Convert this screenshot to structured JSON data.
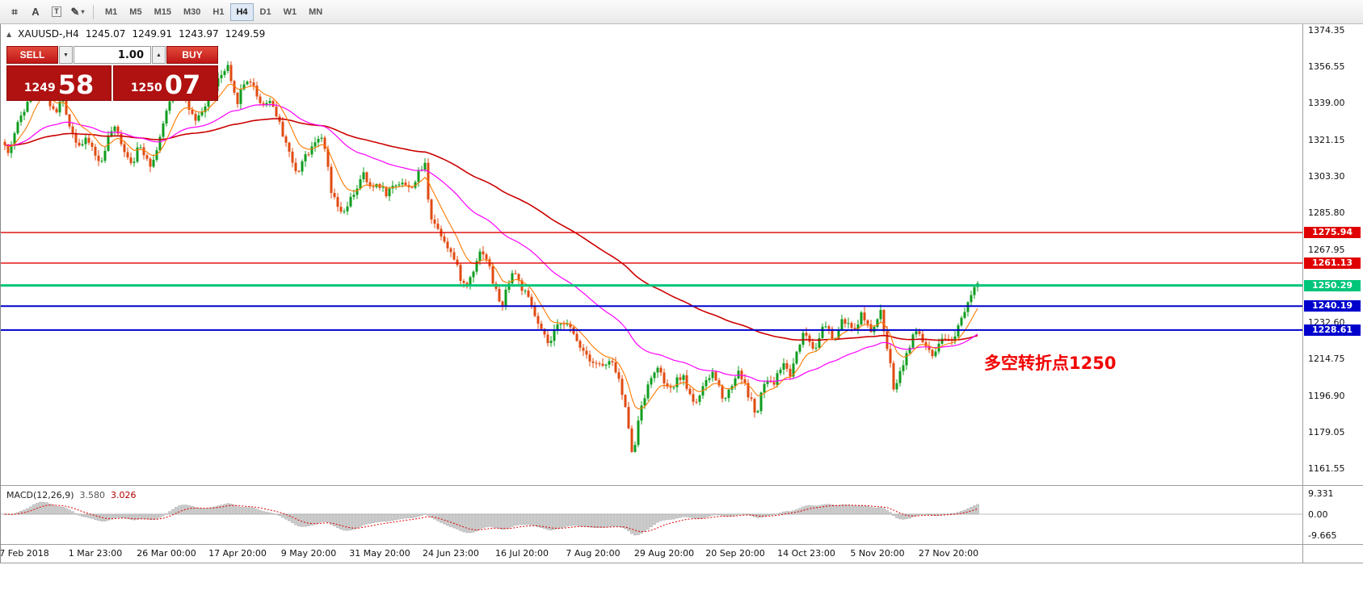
{
  "toolbar": {
    "tools": [
      {
        "name": "crosshair",
        "glyph": "⌗"
      },
      {
        "name": "text",
        "glyph": "A"
      },
      {
        "name": "label",
        "glyph": "T"
      },
      {
        "name": "shapes",
        "glyph": "✎"
      }
    ],
    "dropdown_caret": "▾",
    "timeframes": [
      "M1",
      "M5",
      "M15",
      "M30",
      "H1",
      "H4",
      "D1",
      "W1",
      "MN"
    ],
    "active_timeframe": "H4"
  },
  "symbol_bar": {
    "marker": "▲",
    "symbol": "XAUUSD-,H4",
    "open": "1245.07",
    "high": "1249.91",
    "low": "1243.97",
    "close": "1249.59"
  },
  "trade_panel": {
    "sell_label": "SELL",
    "buy_label": "BUY",
    "volume": "1.00",
    "down_glyph": "▼",
    "up_glyph": "▲",
    "bid_major": "1249",
    "bid_minor": "58",
    "ask_major": "1250",
    "ask_minor": "07"
  },
  "annotation": {
    "text": "多空转折点1250",
    "color": "#f20000"
  },
  "macd": {
    "label": "MACD(12,26,9)",
    "value_main": "3.580",
    "value_signal": "3.026",
    "axis": [
      "9.331",
      "0.00",
      "-9.665"
    ]
  },
  "chart_data": {
    "type": "candlestick",
    "title": "XAUUSD-,H4",
    "symbol": "XAUUSD",
    "timeframe": "H4",
    "ylim": [
      1161.55,
      1374.35
    ],
    "grid": false,
    "price_ticks": [
      "1374.35",
      "1356.55",
      "1339.00",
      "1321.15",
      "1303.30",
      "1285.80",
      "1267.95",
      "1232.60",
      "1214.75",
      "1196.90",
      "1179.05",
      "1161.55"
    ],
    "x_tick_labels": [
      "7 Feb 2018",
      "1 Mar 23:00",
      "26 Mar 00:00",
      "17 Apr 20:00",
      "9 May 20:00",
      "31 May 20:00",
      "24 Jun 23:00",
      "16 Jul 20:00",
      "7 Aug 20:00",
      "29 Aug 20:00",
      "20 Sep 20:00",
      "14 Oct 23:00",
      "5 Nov 20:00",
      "27 Nov 20:00"
    ],
    "hlines": [
      {
        "price": 1275.94,
        "label": "1275.94",
        "color": "#e00000",
        "width": 1.4
      },
      {
        "price": 1261.13,
        "label": "1261.13",
        "color": "#e00000",
        "width": 1.4
      },
      {
        "price": 1250.29,
        "label": "1250.29",
        "color": "#00c57a",
        "width": 3
      },
      {
        "price": 1240.19,
        "label": "1240.19",
        "color": "#0000cd",
        "width": 2
      },
      {
        "price": 1228.61,
        "label": "1228.61",
        "color": "#0000cd",
        "width": 2
      }
    ],
    "colors": {
      "up": "#0f9d1f",
      "down": "#e04a10",
      "ma_fast": "#ff7a00",
      "ma_mid": "#ff00ff",
      "ma_slow": "#cc0000"
    },
    "ma_periods": {
      "fast": 10,
      "mid": 45,
      "slow": 110
    },
    "macd_params": [
      12,
      26,
      9
    ],
    "anchors": [
      [
        6,
        1320
      ],
      [
        12,
        1314
      ],
      [
        18,
        1322
      ],
      [
        26,
        1331
      ],
      [
        34,
        1338
      ],
      [
        42,
        1350
      ],
      [
        50,
        1353
      ],
      [
        56,
        1347
      ],
      [
        62,
        1340
      ],
      [
        70,
        1333
      ],
      [
        78,
        1341
      ],
      [
        86,
        1331
      ],
      [
        94,
        1322
      ],
      [
        102,
        1318
      ],
      [
        110,
        1321
      ],
      [
        118,
        1316
      ],
      [
        126,
        1308
      ],
      [
        134,
        1320
      ],
      [
        142,
        1327
      ],
      [
        150,
        1322
      ],
      [
        158,
        1314
      ],
      [
        166,
        1310
      ],
      [
        174,
        1318
      ],
      [
        182,
        1314
      ],
      [
        190,
        1308
      ],
      [
        198,
        1320
      ],
      [
        206,
        1331
      ],
      [
        214,
        1342
      ],
      [
        222,
        1350
      ],
      [
        228,
        1344
      ],
      [
        236,
        1336
      ],
      [
        244,
        1329
      ],
      [
        252,
        1334
      ],
      [
        260,
        1341
      ],
      [
        268,
        1348
      ],
      [
        276,
        1352
      ],
      [
        284,
        1356
      ],
      [
        290,
        1344
      ],
      [
        296,
        1340
      ],
      [
        302,
        1347
      ],
      [
        310,
        1351
      ],
      [
        318,
        1345
      ],
      [
        326,
        1337
      ],
      [
        334,
        1341
      ],
      [
        342,
        1336
      ],
      [
        350,
        1326
      ],
      [
        358,
        1318
      ],
      [
        364,
        1309
      ],
      [
        370,
        1304
      ],
      [
        376,
        1312
      ],
      [
        382,
        1314
      ],
      [
        390,
        1320
      ],
      [
        398,
        1323
      ],
      [
        406,
        1313
      ],
      [
        412,
        1295
      ],
      [
        420,
        1288
      ],
      [
        428,
        1285
      ],
      [
        436,
        1292
      ],
      [
        444,
        1298
      ],
      [
        452,
        1304
      ],
      [
        460,
        1297
      ],
      [
        470,
        1300
      ],
      [
        480,
        1295
      ],
      [
        490,
        1299
      ],
      [
        500,
        1301
      ],
      [
        508,
        1297
      ],
      [
        516,
        1301
      ],
      [
        522,
        1306
      ],
      [
        528,
        1309
      ],
      [
        534,
        1285
      ],
      [
        542,
        1279
      ],
      [
        550,
        1274
      ],
      [
        558,
        1268
      ],
      [
        566,
        1261
      ],
      [
        572,
        1254
      ],
      [
        578,
        1249
      ],
      [
        586,
        1256
      ],
      [
        592,
        1263
      ],
      [
        598,
        1268
      ],
      [
        606,
        1262
      ],
      [
        612,
        1252
      ],
      [
        618,
        1245
      ],
      [
        624,
        1240
      ],
      [
        630,
        1251
      ],
      [
        638,
        1258
      ],
      [
        646,
        1250
      ],
      [
        654,
        1245
      ],
      [
        660,
        1240
      ],
      [
        668,
        1231
      ],
      [
        676,
        1225
      ],
      [
        682,
        1221
      ],
      [
        690,
        1229
      ],
      [
        698,
        1234
      ],
      [
        706,
        1230
      ],
      [
        714,
        1225
      ],
      [
        722,
        1220
      ],
      [
        728,
        1217
      ],
      [
        734,
        1214
      ],
      [
        742,
        1212
      ],
      [
        750,
        1211
      ],
      [
        758,
        1213
      ],
      [
        766,
        1208
      ],
      [
        772,
        1197
      ],
      [
        778,
        1187
      ],
      [
        783,
        1175
      ],
      [
        786,
        1163
      ],
      [
        790,
        1181
      ],
      [
        796,
        1193
      ],
      [
        802,
        1199
      ],
      [
        808,
        1205
      ],
      [
        814,
        1211
      ],
      [
        822,
        1205
      ],
      [
        830,
        1198
      ],
      [
        838,
        1203
      ],
      [
        846,
        1207
      ],
      [
        854,
        1199
      ],
      [
        862,
        1193
      ],
      [
        868,
        1197
      ],
      [
        876,
        1203
      ],
      [
        884,
        1208
      ],
      [
        892,
        1201
      ],
      [
        898,
        1195
      ],
      [
        904,
        1199
      ],
      [
        910,
        1204
      ],
      [
        916,
        1209
      ],
      [
        922,
        1204
      ],
      [
        928,
        1197
      ],
      [
        934,
        1193
      ],
      [
        938,
        1185
      ],
      [
        944,
        1197
      ],
      [
        950,
        1205
      ],
      [
        958,
        1201
      ],
      [
        966,
        1209
      ],
      [
        974,
        1213
      ],
      [
        980,
        1206
      ],
      [
        986,
        1216
      ],
      [
        992,
        1223
      ],
      [
        998,
        1228
      ],
      [
        1004,
        1223
      ],
      [
        1010,
        1219
      ],
      [
        1016,
        1226
      ],
      [
        1022,
        1231
      ],
      [
        1028,
        1228
      ],
      [
        1034,
        1223
      ],
      [
        1040,
        1229
      ],
      [
        1046,
        1234
      ],
      [
        1052,
        1231
      ],
      [
        1058,
        1227
      ],
      [
        1064,
        1233
      ],
      [
        1070,
        1237
      ],
      [
        1076,
        1231
      ],
      [
        1082,
        1225
      ],
      [
        1086,
        1233
      ],
      [
        1092,
        1237
      ],
      [
        1096,
        1229
      ],
      [
        1100,
        1221
      ],
      [
        1104,
        1211
      ],
      [
        1108,
        1201
      ],
      [
        1114,
        1206
      ],
      [
        1120,
        1213
      ],
      [
        1126,
        1219
      ],
      [
        1132,
        1225
      ],
      [
        1138,
        1229
      ],
      [
        1144,
        1223
      ],
      [
        1150,
        1219
      ],
      [
        1156,
        1215
      ],
      [
        1162,
        1219
      ],
      [
        1168,
        1223
      ],
      [
        1174,
        1225
      ],
      [
        1180,
        1223
      ],
      [
        1186,
        1229
      ],
      [
        1192,
        1235
      ],
      [
        1198,
        1241
      ],
      [
        1204,
        1247
      ],
      [
        1210,
        1251
      ]
    ]
  }
}
